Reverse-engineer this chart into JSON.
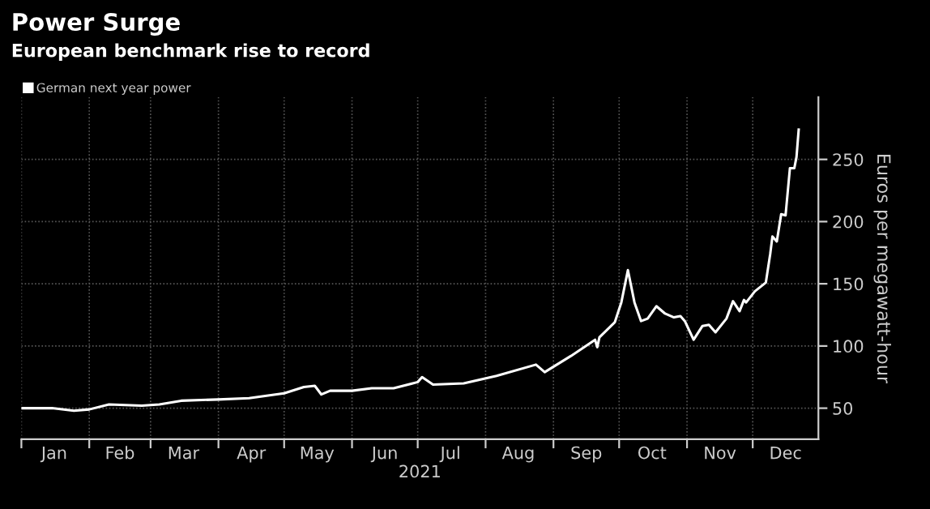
{
  "chart_data": {
    "type": "line",
    "title": "Power Surge",
    "subtitle": "European benchmark rise to record",
    "xlabel": "2021",
    "ylabel": "Euros per megawatt-hour",
    "x": [
      "2021-01-01",
      "2021-01-15",
      "2021-01-25",
      "2021-02-01",
      "2021-02-10",
      "2021-02-25",
      "2021-03-05",
      "2021-03-15",
      "2021-04-01",
      "2021-04-15",
      "2021-05-01",
      "2021-05-10",
      "2021-05-15",
      "2021-05-18",
      "2021-05-22",
      "2021-06-01",
      "2021-06-10",
      "2021-06-20",
      "2021-07-01",
      "2021-07-03",
      "2021-07-08",
      "2021-07-22",
      "2021-08-06",
      "2021-08-24",
      "2021-08-28",
      "2021-09-09",
      "2021-09-20",
      "2021-09-21",
      "2021-09-22",
      "2021-09-29",
      "2021-10-02",
      "2021-10-05",
      "2021-10-08",
      "2021-10-11",
      "2021-10-14",
      "2021-10-18",
      "2021-10-22",
      "2021-10-26",
      "2021-10-29",
      "2021-10-31",
      "2021-11-04",
      "2021-11-08",
      "2021-11-11",
      "2021-11-14",
      "2021-11-19",
      "2021-11-22",
      "2021-11-25",
      "2021-11-27",
      "2021-11-28",
      "2021-12-02",
      "2021-12-07",
      "2021-12-09",
      "2021-12-10",
      "2021-12-12",
      "2021-12-14",
      "2021-12-16",
      "2021-12-18",
      "2021-12-20",
      "2021-12-21",
      "2021-12-22"
    ],
    "series": [
      {
        "name": "German next year power",
        "color": "#ffffff",
        "values": [
          50,
          50,
          48,
          49,
          53,
          52,
          53,
          56,
          57,
          58,
          62,
          67,
          68,
          61,
          64,
          64,
          66,
          66,
          71,
          75,
          69,
          70,
          76,
          85,
          79,
          92,
          105,
          99,
          107,
          119,
          135,
          161,
          135,
          120,
          122,
          132,
          126,
          123,
          124,
          120,
          105,
          116,
          117,
          111,
          122,
          136,
          128,
          137,
          135,
          144,
          151,
          174,
          188,
          184,
          206,
          205,
          243,
          243,
          252,
          274
        ]
      }
    ],
    "xlim": [
      "2021-01-01",
      "2021-12-31"
    ],
    "xticks": [
      {
        "value": "2021-01-01",
        "label": null
      },
      {
        "value": "2021-01-16",
        "label": "Jan"
      },
      {
        "value": "2021-02-01",
        "label": null
      },
      {
        "value": "2021-02-15",
        "label": "Feb"
      },
      {
        "value": "2021-03-01",
        "label": null
      },
      {
        "value": "2021-03-16",
        "label": "Mar"
      },
      {
        "value": "2021-04-01",
        "label": null
      },
      {
        "value": "2021-04-16",
        "label": "Apr"
      },
      {
        "value": "2021-05-01",
        "label": null
      },
      {
        "value": "2021-05-16",
        "label": "May"
      },
      {
        "value": "2021-06-01",
        "label": null
      },
      {
        "value": "2021-06-16",
        "label": "Jun"
      },
      {
        "value": "2021-07-01",
        "label": null
      },
      {
        "value": "2021-07-16",
        "label": "Jul"
      },
      {
        "value": "2021-08-01",
        "label": null
      },
      {
        "value": "2021-08-16",
        "label": "Aug"
      },
      {
        "value": "2021-09-01",
        "label": null
      },
      {
        "value": "2021-09-16",
        "label": "Sep"
      },
      {
        "value": "2021-10-01",
        "label": null
      },
      {
        "value": "2021-10-16",
        "label": "Oct"
      },
      {
        "value": "2021-11-01",
        "label": null
      },
      {
        "value": "2021-11-16",
        "label": "Nov"
      },
      {
        "value": "2021-12-01",
        "label": null
      },
      {
        "value": "2021-12-16",
        "label": "Dec"
      }
    ],
    "ylim": [
      25,
      300
    ],
    "yticks": [
      50,
      100,
      150,
      200,
      250
    ],
    "grid": true,
    "legend": "top left",
    "marker": "none",
    "line_style": "solid"
  }
}
